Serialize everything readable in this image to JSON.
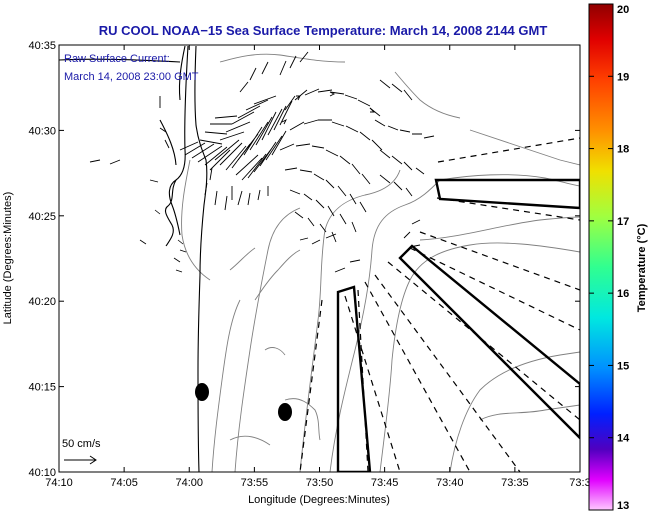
{
  "title": "RU COOL  NOAA−15  Sea Surface Temperature:  March 14, 2008 2144 GMT",
  "annotation": {
    "line1": "Raw Surface Current:",
    "line2": "March 14, 2008 23:00 GMT"
  },
  "scale_label": "50 cm/s",
  "x_axis": {
    "label": "Longitude (Degrees:Minutes)",
    "ticks": [
      "74:10",
      "74:05",
      "74:00",
      "73:55",
      "73:50",
      "73:45",
      "73:40",
      "73:35",
      "73:3"
    ]
  },
  "y_axis": {
    "label": "Latitude (Degrees:Minutes)",
    "ticks": [
      "40:35",
      "40:30",
      "40:25",
      "40:20",
      "40:15",
      "40:10"
    ]
  },
  "colorbar": {
    "label": "Temperature (°C)",
    "ticks": [
      "20",
      "19",
      "18",
      "17",
      "16",
      "15",
      "14",
      "13"
    ],
    "colors": [
      "#b00000",
      "#ff2000",
      "#ff9000",
      "#f8f800",
      "#40ff90",
      "#00e0ff",
      "#0050ff",
      "#3000c0",
      "#ff00ff",
      "#ffffff"
    ]
  },
  "map_colors": {
    "contour": "#808080",
    "coast": "#000000",
    "vector": "#000000"
  }
}
